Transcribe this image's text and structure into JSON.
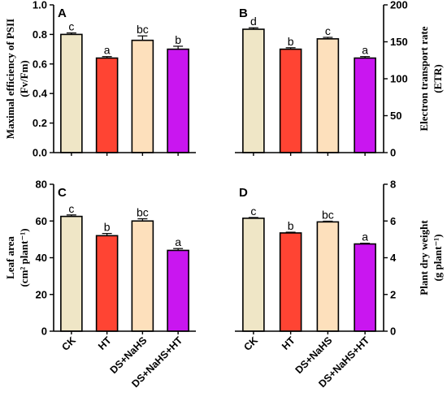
{
  "colors": {
    "CK": "#efe6c6",
    "HT": "#ff4433",
    "DS+NaHS": "#fde0bc",
    "DS+NaHS+HT": "#c916f0",
    "axis": "#000000",
    "error_bar": "#000000"
  },
  "chart_data": [
    {
      "type": "bar",
      "panel": "A",
      "categories": [
        "CK",
        "HT",
        "DS+NaHS",
        "DS+NaHS+HT"
      ],
      "values": [
        0.8,
        0.64,
        0.76,
        0.7
      ],
      "errors": [
        0.01,
        0.01,
        0.03,
        0.02
      ],
      "significance": [
        "c",
        "a",
        "bc",
        "b"
      ],
      "ylabel_line1": "Maximal efficiency of PSII",
      "ylabel_line2": "(Fv/Fm)",
      "ylim": [
        0,
        1.0
      ],
      "yticks": [
        0,
        0.2,
        0.4,
        0.6,
        0.8,
        1.0
      ],
      "ytick_labels": [
        "0.0",
        "0.2",
        "0.4",
        "0.6",
        "0.8",
        "1.0"
      ],
      "yaxis_side": "left",
      "xtick_labels_shown": false
    },
    {
      "type": "bar",
      "panel": "B",
      "categories": [
        "CK",
        "HT",
        "DS+NaHS",
        "DS+NaHS+HT"
      ],
      "values": [
        167,
        140,
        154,
        128
      ],
      "errors": [
        2,
        2,
        2,
        2
      ],
      "significance": [
        "d",
        "b",
        "c",
        "a"
      ],
      "ylabel_line1": "Electron transport rate",
      "ylabel_line2": "(ETR)",
      "ylim": [
        0,
        200
      ],
      "yticks": [
        0,
        50,
        100,
        150,
        200
      ],
      "ytick_labels": [
        "0",
        "50",
        "100",
        "150",
        "200"
      ],
      "yaxis_side": "right",
      "xtick_labels_shown": false
    },
    {
      "type": "bar",
      "panel": "C",
      "categories": [
        "CK",
        "HT",
        "DS+NaHS",
        "DS+NaHS+HT"
      ],
      "values": [
        62.5,
        52,
        60,
        44
      ],
      "errors": [
        0.8,
        1.2,
        1.2,
        1.0
      ],
      "significance": [
        "c",
        "b",
        "bc",
        "a"
      ],
      "ylabel_line1": "Leaf area",
      "ylabel_line2": "(cm² plant⁻¹)",
      "ylim": [
        0,
        80
      ],
      "yticks": [
        0,
        20,
        40,
        60,
        80
      ],
      "ytick_labels": [
        "0",
        "20",
        "40",
        "60",
        "80"
      ],
      "yaxis_side": "left",
      "xtick_labels_shown": true
    },
    {
      "type": "bar",
      "panel": "D",
      "categories": [
        "CK",
        "HT",
        "DS+NaHS",
        "DS+NaHS+HT"
      ],
      "values": [
        6.15,
        5.35,
        5.95,
        4.75
      ],
      "errors": [
        0.04,
        0.04,
        0.04,
        0.04
      ],
      "significance": [
        "c",
        "b",
        "bc",
        "a"
      ],
      "ylabel_line1": "Plant dry weight",
      "ylabel_line2": "(g plant⁻¹)",
      "ylim": [
        0,
        8
      ],
      "yticks": [
        0,
        2,
        4,
        6,
        8
      ],
      "ytick_labels": [
        "0",
        "2",
        "4",
        "6",
        "8"
      ],
      "yaxis_side": "right",
      "xtick_labels_shown": true
    }
  ]
}
